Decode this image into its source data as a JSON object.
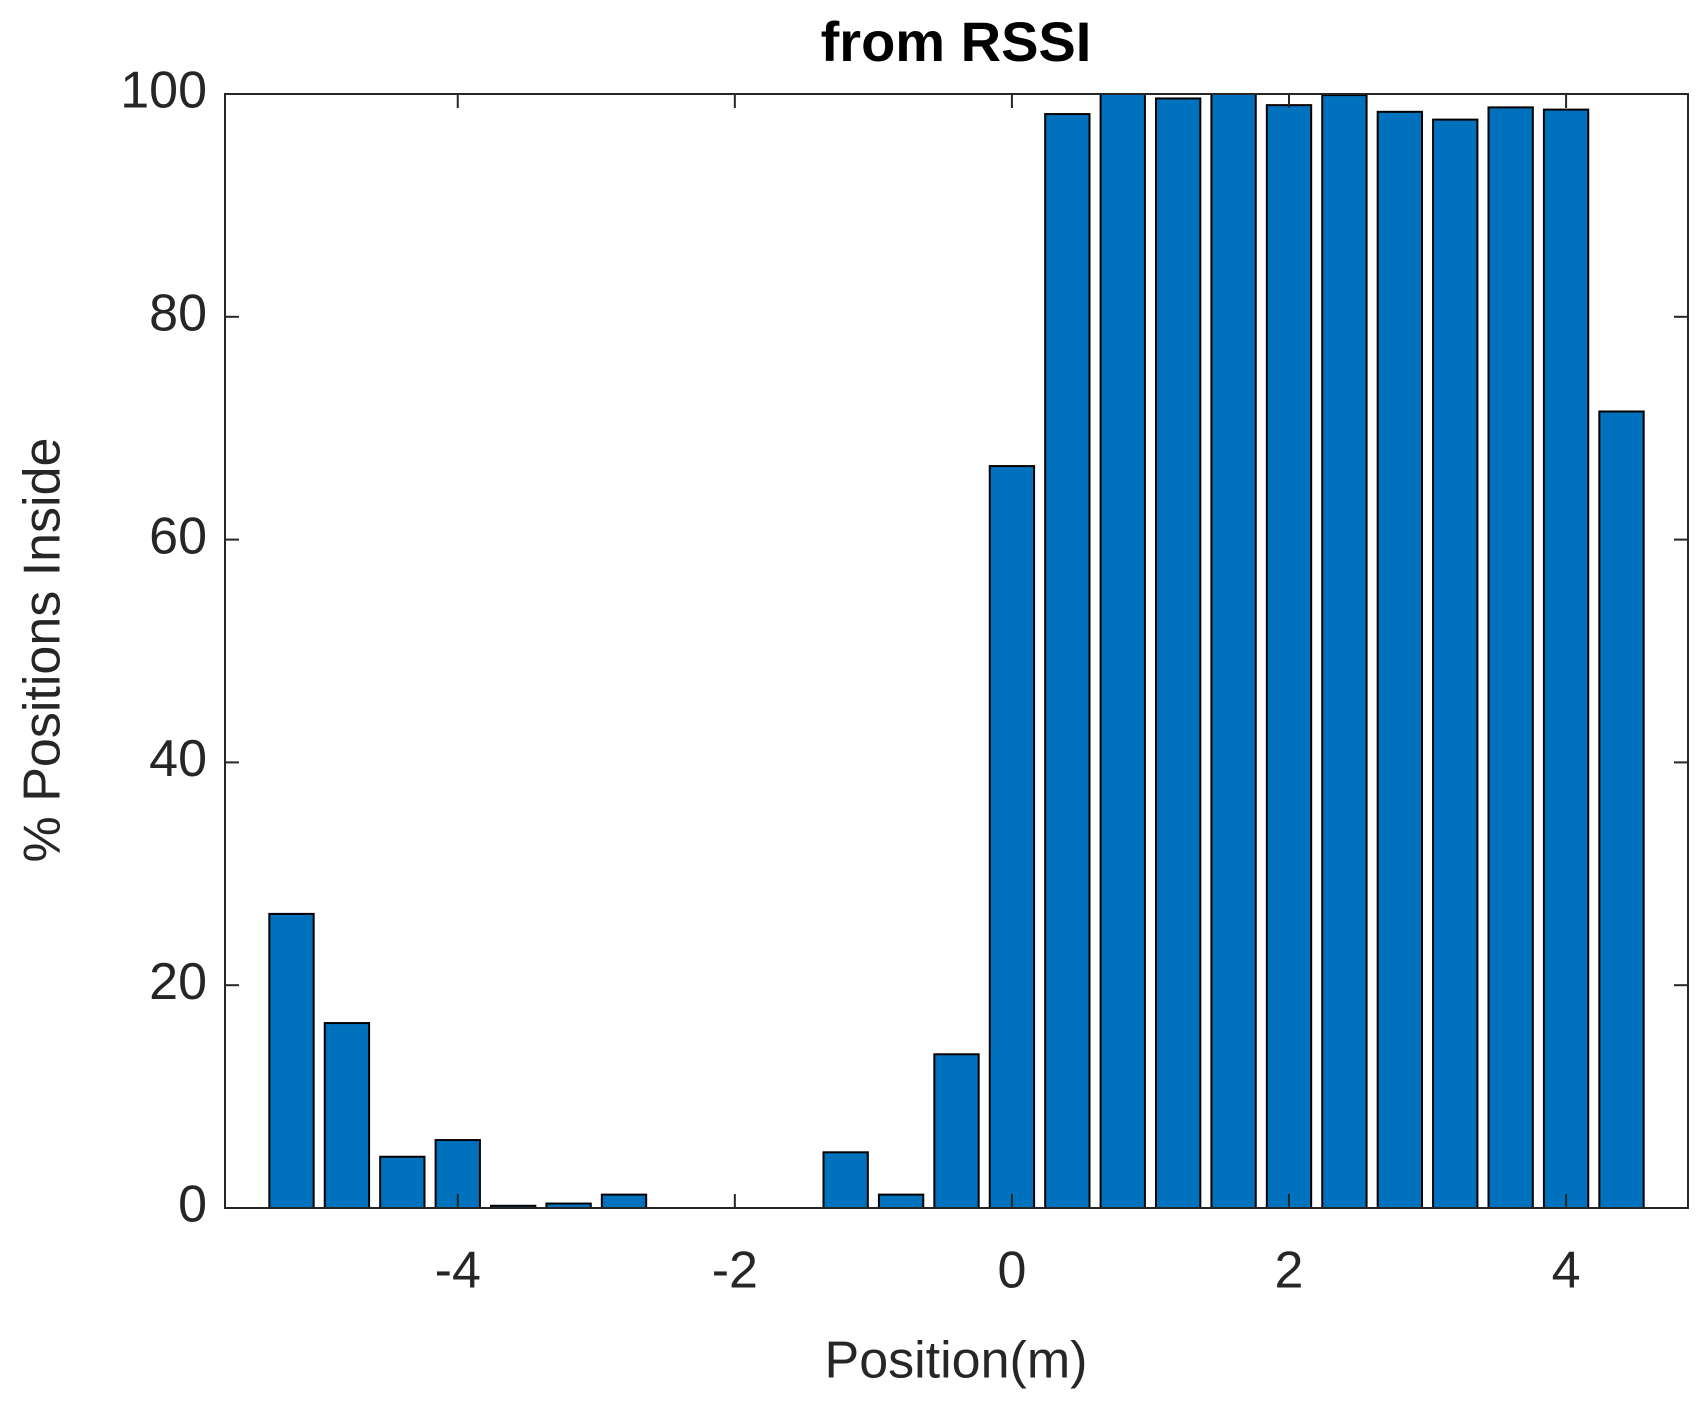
{
  "chart_data": {
    "type": "bar",
    "title": "from RSSI",
    "xlabel": "Position(m)",
    "ylabel": "% Positions Inside",
    "x": [
      -5.2,
      -4.8,
      -4.4,
      -4.0,
      -3.6,
      -3.2,
      -2.8,
      -2.4,
      -2.0,
      -1.6,
      -1.2,
      -0.8,
      -0.4,
      0,
      0.4,
      0.8,
      1.2,
      1.6,
      2.0,
      2.4,
      2.8,
      3.2,
      3.6,
      4.0,
      4.4
    ],
    "values": [
      26.4,
      16.6,
      4.6,
      6.1,
      0.2,
      0.4,
      1.2,
      0,
      0,
      0,
      5.0,
      1.2,
      13.8,
      66.6,
      98.2,
      100,
      99.6,
      100,
      99.0,
      99.9,
      98.4,
      97.7,
      98.8,
      98.6,
      71.5
    ],
    "color": "#0072bd",
    "xlim": [
      -5.68,
      4.88
    ],
    "xticks": [
      -4,
      -2,
      0,
      2,
      4
    ],
    "ylim": [
      0,
      100
    ],
    "yticks": [
      0,
      20,
      40,
      60,
      80,
      100
    ],
    "grid": false
  }
}
